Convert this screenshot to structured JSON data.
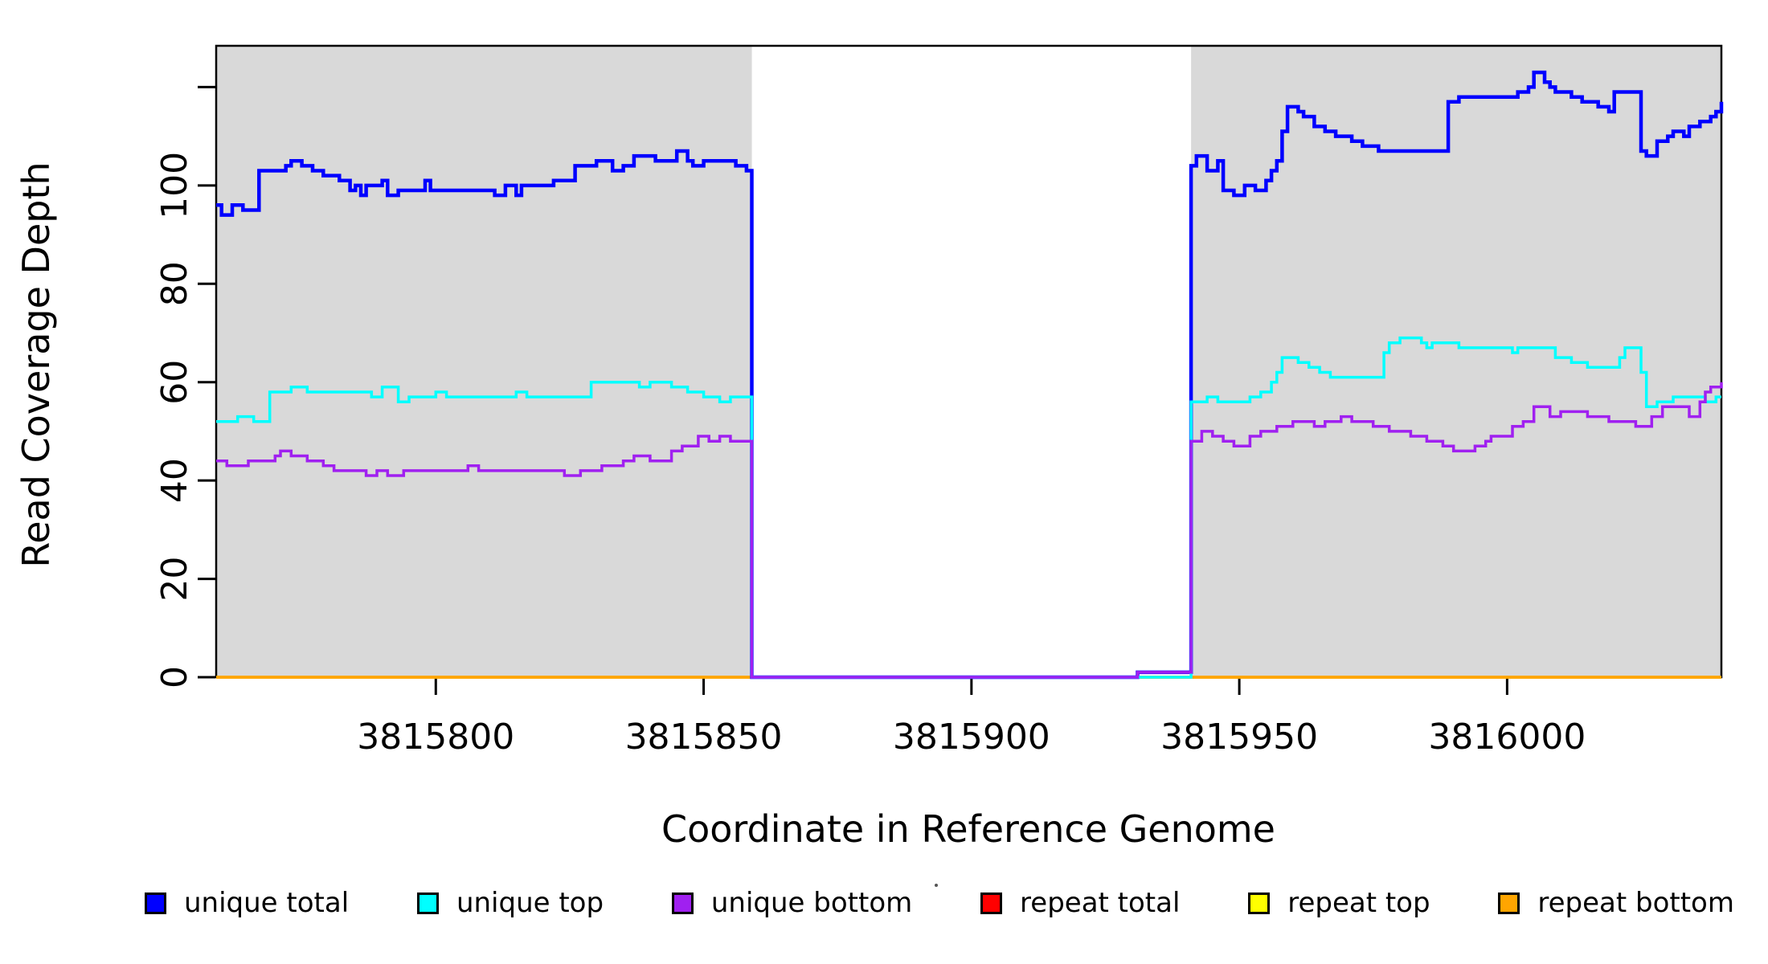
{
  "chart_data": {
    "type": "line",
    "subtype": "step-after",
    "title": "",
    "xlabel": "Coordinate in Reference Genome",
    "ylabel": "Read Coverage Depth",
    "xlim": [
      3815759,
      3816040
    ],
    "ylim": [
      0,
      128.4
    ],
    "grid": false,
    "legend_position": "bottom",
    "x_ticks": [
      {
        "v": 3815800,
        "label": "3815800"
      },
      {
        "v": 3815850,
        "label": "3815850"
      },
      {
        "v": 3815900,
        "label": "3815900"
      },
      {
        "v": 3815950,
        "label": "3815950"
      },
      {
        "v": 3816000,
        "label": "3816000"
      }
    ],
    "y_ticks": [
      {
        "v": 0,
        "label": "0"
      },
      {
        "v": 20,
        "label": "20"
      },
      {
        "v": 40,
        "label": "40"
      },
      {
        "v": 60,
        "label": "60"
      },
      {
        "v": 80,
        "label": "80"
      },
      {
        "v": 100,
        "label": "100"
      },
      {
        "v": 120,
        "label": ""
      }
    ],
    "shaded_regions": [
      {
        "name": "left-gray-band",
        "x0": 3815759,
        "x1": 3815859,
        "color": "#d9d9d9"
      },
      {
        "name": "right-gray-band",
        "x0": 3815941,
        "x1": 3816040,
        "color": "#d9d9d9"
      }
    ],
    "gap_region": {
      "x0": 3815859,
      "x1": 3815941,
      "note": "zero-coverage white gap"
    },
    "colors": {
      "unique_total": "#0000ff",
      "unique_top": "#00ffff",
      "unique_bottom": "#a020f0",
      "repeat_total": "#ff0000",
      "repeat_top": "#ffff00",
      "repeat_bottom": "#ffa500",
      "band": "#d9d9d9",
      "axis": "#000000"
    },
    "series": [
      {
        "name": "repeat total",
        "key": "repeat-total",
        "color": "#ff0000",
        "points": [
          [
            3815759,
            0
          ]
        ]
      },
      {
        "name": "repeat top",
        "key": "repeat-top",
        "color": "#ffff00",
        "points": [
          [
            3815759,
            0
          ]
        ]
      },
      {
        "name": "repeat bottom",
        "key": "repeat-bottom",
        "color": "#ffa500",
        "points": [
          [
            3815759,
            0
          ]
        ]
      },
      {
        "name": "unique total",
        "key": "unique-total",
        "color": "#0000ff",
        "points": [
          [
            3815759,
            96
          ],
          [
            3815760,
            94
          ],
          [
            3815762,
            96
          ],
          [
            3815764,
            95
          ],
          [
            3815767,
            103
          ],
          [
            3815772,
            104
          ],
          [
            3815773,
            105
          ],
          [
            3815775,
            104
          ],
          [
            3815777,
            103
          ],
          [
            3815779,
            102
          ],
          [
            3815782,
            101
          ],
          [
            3815784,
            99
          ],
          [
            3815785,
            100
          ],
          [
            3815786,
            98
          ],
          [
            3815787,
            100
          ],
          [
            3815790,
            101
          ],
          [
            3815791,
            98
          ],
          [
            3815793,
            99
          ],
          [
            3815798,
            101
          ],
          [
            3815799,
            99
          ],
          [
            3815811,
            98
          ],
          [
            3815813,
            100
          ],
          [
            3815815,
            98
          ],
          [
            3815816,
            100
          ],
          [
            3815822,
            101
          ],
          [
            3815826,
            104
          ],
          [
            3815830,
            105
          ],
          [
            3815833,
            103
          ],
          [
            3815835,
            104
          ],
          [
            3815837,
            106
          ],
          [
            3815841,
            105
          ],
          [
            3815845,
            107
          ],
          [
            3815847,
            105
          ],
          [
            3815848,
            104
          ],
          [
            3815850,
            105
          ],
          [
            3815856,
            104
          ],
          [
            3815858,
            103
          ],
          [
            3815859,
            0
          ],
          [
            3815931,
            1
          ],
          [
            3815941,
            104
          ],
          [
            3815942,
            106
          ],
          [
            3815944,
            103
          ],
          [
            3815946,
            105
          ],
          [
            3815947,
            99
          ],
          [
            3815949,
            98
          ],
          [
            3815951,
            100
          ],
          [
            3815953,
            99
          ],
          [
            3815955,
            101
          ],
          [
            3815956,
            103
          ],
          [
            3815957,
            105
          ],
          [
            3815958,
            111
          ],
          [
            3815959,
            116
          ],
          [
            3815961,
            115
          ],
          [
            3815962,
            114
          ],
          [
            3815964,
            112
          ],
          [
            3815966,
            111
          ],
          [
            3815968,
            110
          ],
          [
            3815971,
            109
          ],
          [
            3815973,
            108
          ],
          [
            3815976,
            107
          ],
          [
            3815989,
            117
          ],
          [
            3815991,
            118
          ],
          [
            3816002,
            119
          ],
          [
            3816004,
            120
          ],
          [
            3816005,
            123
          ],
          [
            3816007,
            121
          ],
          [
            3816008,
            120
          ],
          [
            3816009,
            119
          ],
          [
            3816012,
            118
          ],
          [
            3816014,
            117
          ],
          [
            3816017,
            116
          ],
          [
            3816019,
            115
          ],
          [
            3816020,
            119
          ],
          [
            3816025,
            107
          ],
          [
            3816026,
            106
          ],
          [
            3816028,
            109
          ],
          [
            3816030,
            110
          ],
          [
            3816031,
            111
          ],
          [
            3816033,
            110
          ],
          [
            3816034,
            112
          ],
          [
            3816036,
            113
          ],
          [
            3816038,
            114
          ],
          [
            3816039,
            115
          ],
          [
            3816040,
            117
          ]
        ]
      },
      {
        "name": "unique top",
        "key": "unique-top",
        "color": "#00ffff",
        "points": [
          [
            3815759,
            52
          ],
          [
            3815763,
            53
          ],
          [
            3815766,
            52
          ],
          [
            3815769,
            58
          ],
          [
            3815773,
            59
          ],
          [
            3815776,
            58
          ],
          [
            3815788,
            57
          ],
          [
            3815790,
            59
          ],
          [
            3815793,
            56
          ],
          [
            3815795,
            57
          ],
          [
            3815800,
            58
          ],
          [
            3815802,
            57
          ],
          [
            3815815,
            58
          ],
          [
            3815817,
            57
          ],
          [
            3815829,
            60
          ],
          [
            3815838,
            59
          ],
          [
            3815840,
            60
          ],
          [
            3815844,
            59
          ],
          [
            3815847,
            58
          ],
          [
            3815850,
            57
          ],
          [
            3815853,
            56
          ],
          [
            3815855,
            57
          ],
          [
            3815859,
            0
          ],
          [
            3815941,
            56
          ],
          [
            3815944,
            57
          ],
          [
            3815946,
            56
          ],
          [
            3815952,
            57
          ],
          [
            3815954,
            58
          ],
          [
            3815956,
            60
          ],
          [
            3815957,
            62
          ],
          [
            3815958,
            65
          ],
          [
            3815961,
            64
          ],
          [
            3815963,
            63
          ],
          [
            3815965,
            62
          ],
          [
            3815967,
            61
          ],
          [
            3815977,
            66
          ],
          [
            3815978,
            68
          ],
          [
            3815980,
            69
          ],
          [
            3815984,
            68
          ],
          [
            3815985,
            67
          ],
          [
            3815986,
            68
          ],
          [
            3815991,
            67
          ],
          [
            3816001,
            66
          ],
          [
            3816002,
            67
          ],
          [
            3816009,
            65
          ],
          [
            3816012,
            64
          ],
          [
            3816015,
            63
          ],
          [
            3816021,
            65
          ],
          [
            3816022,
            67
          ],
          [
            3816025,
            62
          ],
          [
            3816026,
            55
          ],
          [
            3816028,
            56
          ],
          [
            3816031,
            57
          ],
          [
            3816037,
            56
          ],
          [
            3816039,
            57
          ]
        ]
      },
      {
        "name": "unique bottom",
        "key": "unique-bottom",
        "color": "#a020f0",
        "points": [
          [
            3815759,
            44
          ],
          [
            3815761,
            43
          ],
          [
            3815765,
            44
          ],
          [
            3815770,
            45
          ],
          [
            3815771,
            46
          ],
          [
            3815773,
            45
          ],
          [
            3815776,
            44
          ],
          [
            3815779,
            43
          ],
          [
            3815781,
            42
          ],
          [
            3815787,
            41
          ],
          [
            3815789,
            42
          ],
          [
            3815791,
            41
          ],
          [
            3815794,
            42
          ],
          [
            3815806,
            43
          ],
          [
            3815808,
            42
          ],
          [
            3815824,
            41
          ],
          [
            3815827,
            42
          ],
          [
            3815831,
            43
          ],
          [
            3815835,
            44
          ],
          [
            3815837,
            45
          ],
          [
            3815840,
            44
          ],
          [
            3815844,
            46
          ],
          [
            3815846,
            47
          ],
          [
            3815849,
            49
          ],
          [
            3815851,
            48
          ],
          [
            3815853,
            49
          ],
          [
            3815855,
            48
          ],
          [
            3815859,
            0
          ],
          [
            3815931,
            1
          ],
          [
            3815941,
            48
          ],
          [
            3815943,
            50
          ],
          [
            3815945,
            49
          ],
          [
            3815947,
            48
          ],
          [
            3815949,
            47
          ],
          [
            3815952,
            49
          ],
          [
            3815954,
            50
          ],
          [
            3815957,
            51
          ],
          [
            3815960,
            52
          ],
          [
            3815964,
            51
          ],
          [
            3815966,
            52
          ],
          [
            3815969,
            53
          ],
          [
            3815971,
            52
          ],
          [
            3815975,
            51
          ],
          [
            3815978,
            50
          ],
          [
            3815982,
            49
          ],
          [
            3815985,
            48
          ],
          [
            3815988,
            47
          ],
          [
            3815990,
            46
          ],
          [
            3815994,
            47
          ],
          [
            3815996,
            48
          ],
          [
            3815997,
            49
          ],
          [
            3816001,
            51
          ],
          [
            3816003,
            52
          ],
          [
            3816005,
            55
          ],
          [
            3816008,
            53
          ],
          [
            3816010,
            54
          ],
          [
            3816015,
            53
          ],
          [
            3816019,
            52
          ],
          [
            3816024,
            51
          ],
          [
            3816027,
            53
          ],
          [
            3816029,
            55
          ],
          [
            3816034,
            53
          ],
          [
            3816036,
            56
          ],
          [
            3816037,
            58
          ],
          [
            3816038,
            59
          ],
          [
            3816040,
            60
          ]
        ]
      }
    ]
  },
  "legend": {
    "items": [
      {
        "label": "unique total",
        "color": "#0000ff"
      },
      {
        "label": "unique top",
        "color": "#00ffff"
      },
      {
        "label": "unique bottom",
        "color": "#a020f0"
      },
      {
        "label": "repeat total",
        "color": "#ff0000"
      },
      {
        "label": "repeat top",
        "color": "#ffff00"
      },
      {
        "label": "repeat bottom",
        "color": "#ffa500"
      }
    ]
  }
}
